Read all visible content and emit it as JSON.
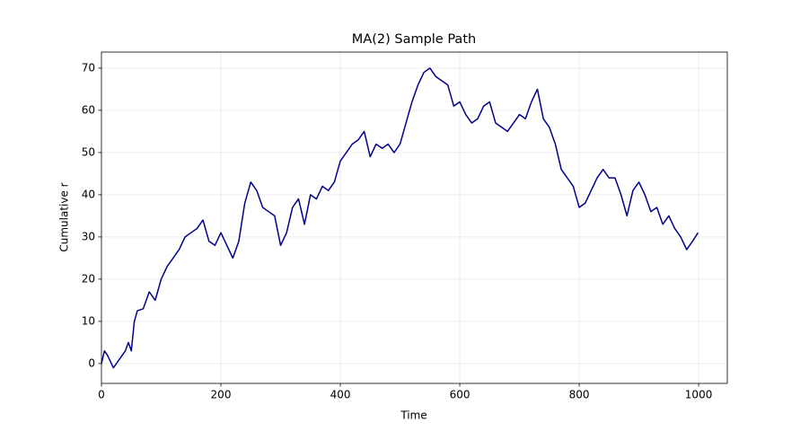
{
  "chart_data": {
    "type": "line",
    "title": "MA(2) Sample Path",
    "x_label": "Time",
    "y_label": "Cumulative r",
    "x": [
      0,
      5,
      10,
      20,
      30,
      40,
      45,
      50,
      55,
      60,
      70,
      80,
      90,
      100,
      110,
      120,
      130,
      140,
      150,
      160,
      170,
      180,
      190,
      200,
      210,
      220,
      230,
      240,
      250,
      260,
      270,
      280,
      290,
      300,
      310,
      320,
      330,
      340,
      350,
      360,
      370,
      380,
      390,
      400,
      410,
      420,
      430,
      440,
      450,
      460,
      470,
      480,
      490,
      500,
      510,
      520,
      530,
      540,
      550,
      560,
      570,
      580,
      590,
      600,
      610,
      620,
      630,
      640,
      650,
      660,
      670,
      680,
      690,
      700,
      710,
      720,
      730,
      740,
      750,
      760,
      770,
      780,
      790,
      800,
      810,
      820,
      830,
      840,
      850,
      860,
      870,
      880,
      890,
      900,
      910,
      920,
      930,
      940,
      950,
      960,
      970,
      980,
      990,
      999
    ],
    "series": [
      {
        "name": "Cumulative r",
        "color": "#00008b",
        "values": [
          0,
          3,
          2,
          -1,
          1,
          3,
          5,
          3,
          10,
          12.5,
          13,
          17,
          15,
          20,
          23,
          25,
          27,
          30,
          31,
          32,
          34,
          29,
          28,
          31,
          28,
          25,
          29,
          38,
          43,
          41,
          37,
          36,
          35,
          28,
          31,
          37,
          39,
          33,
          40,
          39,
          42,
          41,
          43,
          48,
          50,
          52,
          53,
          55,
          49,
          52,
          51,
          52,
          50,
          52,
          57,
          62,
          66,
          69,
          70,
          68,
          67,
          66,
          61,
          62,
          59,
          57,
          58,
          61,
          62,
          57,
          56,
          55,
          57,
          59,
          58,
          62,
          65,
          58,
          56,
          52,
          46,
          44,
          42,
          37,
          38,
          41,
          44,
          46,
          44,
          44,
          40,
          35,
          41,
          43,
          40,
          36,
          37,
          33,
          35,
          32,
          30,
          27,
          29,
          31
        ]
      }
    ],
    "xlim": [
      0,
      1048
    ],
    "ylim": [
      -4.7,
      73.8
    ],
    "xticks": [
      0,
      200,
      400,
      600,
      800,
      1000
    ],
    "yticks": [
      0,
      10,
      20,
      30,
      40,
      50,
      60,
      70
    ],
    "grid": true
  }
}
